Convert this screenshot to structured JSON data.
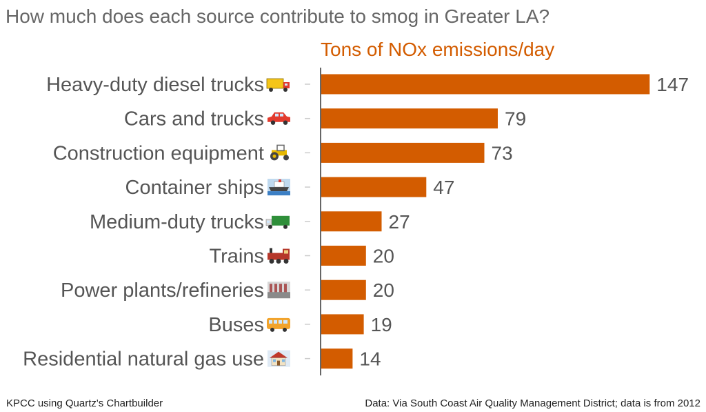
{
  "title": "How much does each source contribute to smog in Greater LA?",
  "colors": {
    "bar": "#d35c00",
    "subtitle": "#d35c00",
    "axis": "#333333",
    "label": "#555555",
    "tick": "#cccccc"
  },
  "chart_data": {
    "type": "bar",
    "orientation": "horizontal",
    "subtitle": "Tons of NOx emissions/day",
    "categories": [
      "Heavy-duty diesel trucks",
      "Cars and trucks",
      "Construction equipment",
      "Container ships",
      "Medium-duty trucks",
      "Trains",
      "Power plants/refineries",
      "Buses",
      "Residential natural gas use"
    ],
    "icons": [
      "delivery-truck-icon",
      "car-icon",
      "tractor-icon",
      "ship-icon",
      "lorry-icon",
      "locomotive-icon",
      "factory-icon",
      "bus-icon",
      "house-icon"
    ],
    "values": [
      147,
      79,
      73,
      47,
      27,
      20,
      20,
      19,
      14
    ],
    "value_labels": [
      "147",
      "79",
      "73",
      "47",
      "27",
      "20",
      "20",
      "19",
      "14"
    ],
    "xlim": [
      0,
      150
    ],
    "grid": false
  },
  "footer": {
    "credit": "KPCC using Quartz's Chartbuilder",
    "source": "Data: Via South Coast Air Quality Management District; data is from 2012"
  }
}
